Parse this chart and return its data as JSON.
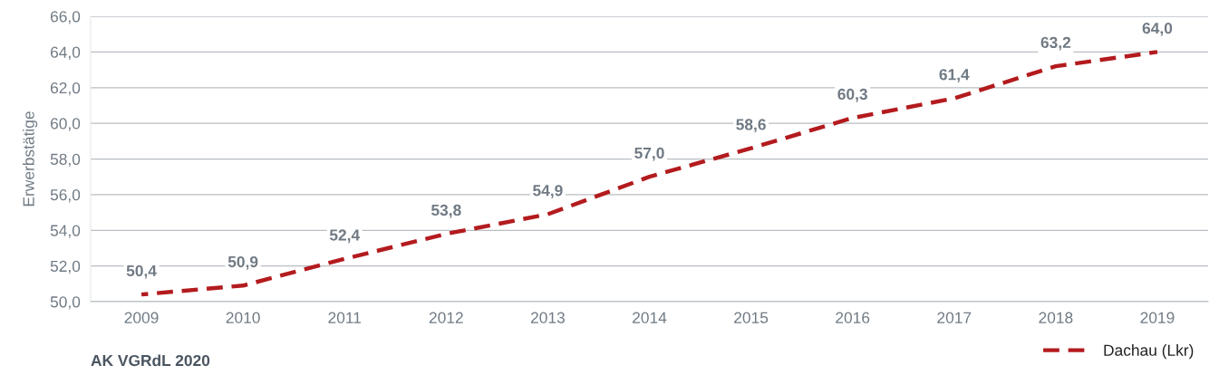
{
  "chart_data": {
    "type": "line",
    "ylabel": "Erwerbstätige",
    "categories": [
      "2009",
      "2010",
      "2011",
      "2012",
      "2013",
      "2014",
      "2015",
      "2016",
      "2017",
      "2018",
      "2019"
    ],
    "series": [
      {
        "name": "Dachau (Lkr)",
        "color": "#b31b1e",
        "values": [
          50.4,
          50.9,
          52.4,
          53.8,
          54.9,
          57.0,
          58.6,
          60.3,
          61.4,
          63.2,
          64.0
        ],
        "value_labels": [
          "50,4",
          "50,9",
          "52,4",
          "53,8",
          "54,9",
          "57,0",
          "58,6",
          "60,3",
          "61,4",
          "63,2",
          "64,0"
        ]
      }
    ],
    "ylim": [
      50,
      66
    ],
    "yticks": [
      {
        "value": 50,
        "label": "50,0"
      },
      {
        "value": 52,
        "label": "52,0"
      },
      {
        "value": 54,
        "label": "54,0"
      },
      {
        "value": 56,
        "label": "56,0"
      },
      {
        "value": 58,
        "label": "58,0"
      },
      {
        "value": 60,
        "label": "60,0"
      },
      {
        "value": 62,
        "label": "62,0"
      },
      {
        "value": 64,
        "label": "64,0"
      },
      {
        "value": 66,
        "label": "66,0"
      }
    ],
    "grid": "y",
    "legend": "bottom right",
    "line_style": "dashed",
    "marker": "none",
    "annotations": [
      "AK VGRdL 2020"
    ]
  }
}
